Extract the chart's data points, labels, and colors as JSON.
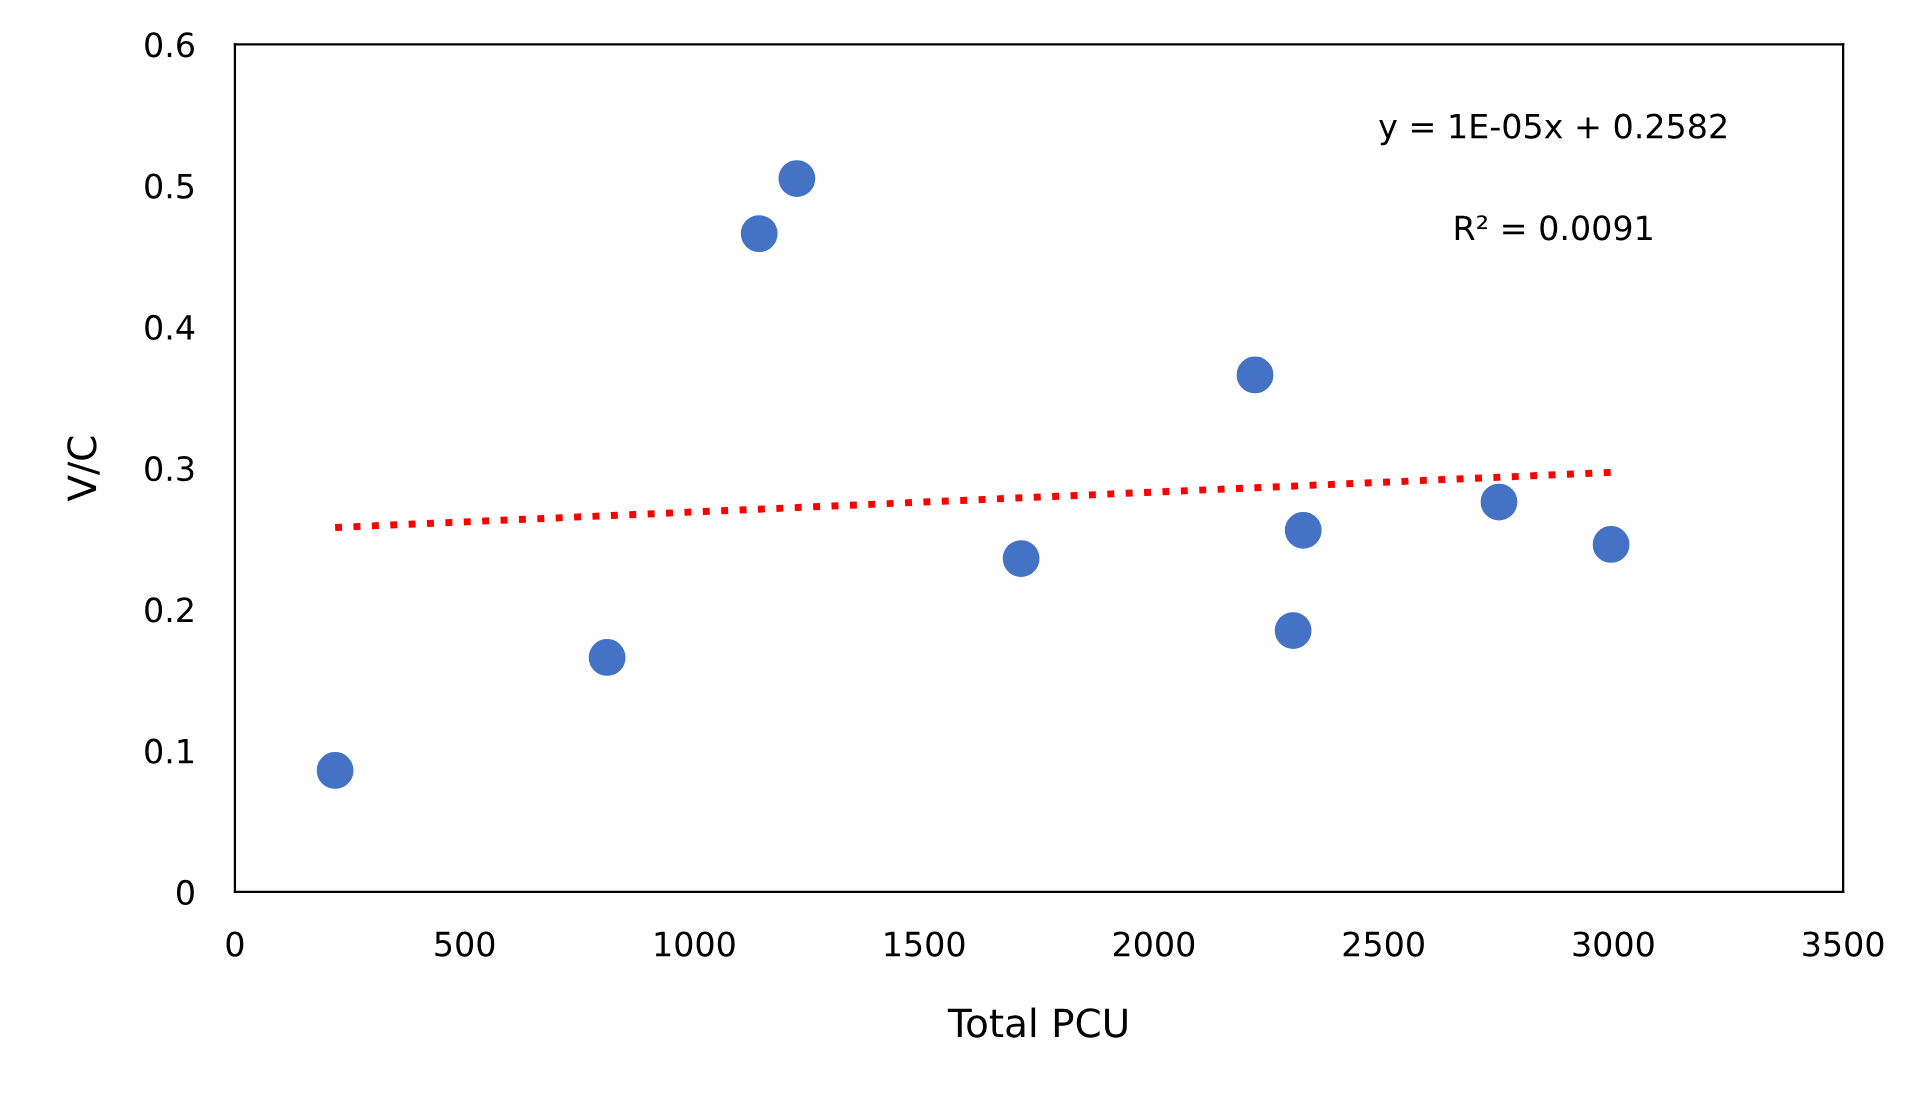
{
  "chart_data": {
    "type": "scatter",
    "xlabel": "Total PCU",
    "ylabel": "V/C",
    "xlim": [
      0,
      3500
    ],
    "xticks": [
      0,
      500,
      1000,
      1500,
      2000,
      2500,
      3000,
      3500
    ],
    "ylim": [
      0,
      0.6
    ],
    "yticks": [
      0,
      0.1,
      0.2,
      0.3,
      0.4,
      0.5,
      0.6
    ],
    "grid": false,
    "legend": false,
    "series": [
      {
        "marker": "circle",
        "color": "#4472c4",
        "x": [
          218,
          810,
          1141,
          1223,
          1711,
          2220,
          2303,
          2325,
          2751,
          2995
        ],
        "values": [
          0.086,
          0.166,
          0.466,
          0.505,
          0.236,
          0.366,
          0.185,
          0.256,
          0.276,
          0.246
        ]
      },
      {
        "type": "line",
        "marker": "none",
        "color": "#ff0000",
        "line_style": "dotted",
        "x": [
          218,
          2995
        ],
        "values": [
          0.258,
          0.297
        ]
      }
    ],
    "annotations": [
      "y = 1E-05x + 0.2582",
      "R² = 0.0091"
    ]
  }
}
